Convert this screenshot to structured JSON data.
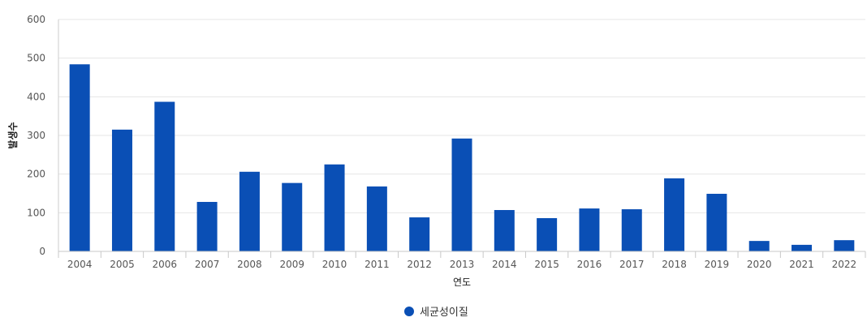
{
  "chart_data": {
    "type": "bar",
    "xlabel": "연도",
    "ylabel": "발생수",
    "ylim": [
      0,
      600
    ],
    "yticks": [
      0,
      100,
      200,
      300,
      400,
      500,
      600
    ],
    "grid": true,
    "legend_position": "bottom-center",
    "categories": [
      "2004",
      "2005",
      "2006",
      "2007",
      "2008",
      "2009",
      "2010",
      "2011",
      "2012",
      "2013",
      "2014",
      "2015",
      "2016",
      "2017",
      "2018",
      "2019",
      "2020",
      "2021",
      "2022"
    ],
    "series": [
      {
        "name": "세균성이질",
        "color": "#0a4fb5",
        "values": [
          484,
          315,
          387,
          128,
          206,
          177,
          225,
          168,
          88,
          292,
          107,
          86,
          111,
          109,
          189,
          149,
          27,
          17,
          29
        ]
      }
    ]
  }
}
